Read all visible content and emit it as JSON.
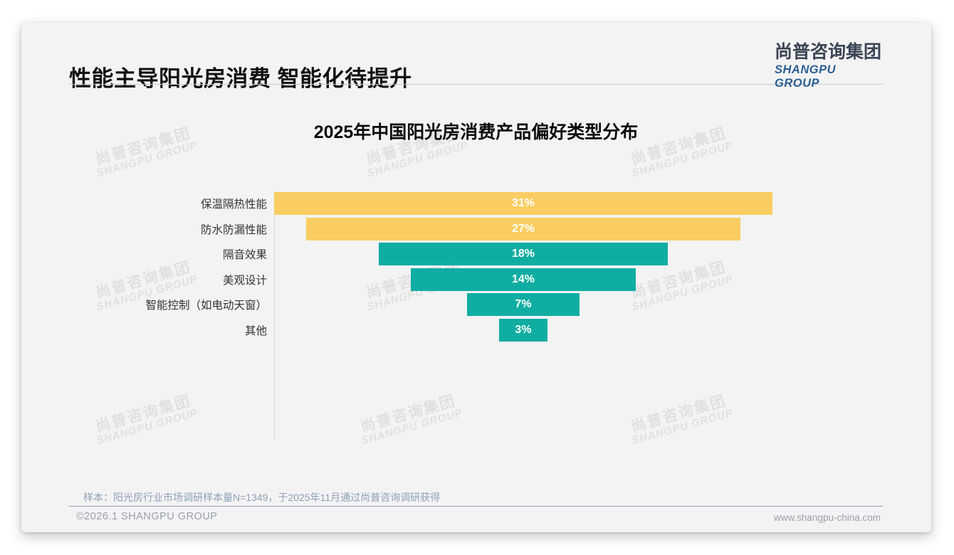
{
  "header": {
    "title": "性能主导阳光房消费 智能化待提升",
    "logo": {
      "cn": "尚普咨询集团",
      "en": "SHANGPU GROUP"
    }
  },
  "chart_data": {
    "type": "bar",
    "title": "2025年中国阳光房消费产品偏好类型分布",
    "orientation": "horizontal-centered-funnel",
    "categories": [
      "保温隔热性能",
      "防水防漏性能",
      "隔音效果",
      "美观设计",
      "智能控制（如电动天窗）",
      "其他"
    ],
    "values": [
      31,
      27,
      18,
      14,
      7,
      3
    ],
    "value_labels": [
      "31%",
      "27%",
      "18%",
      "14%",
      "7%",
      "3%"
    ],
    "bar_colors": [
      "#FACD63",
      "#FACD63",
      "#10ADA2",
      "#10ADA2",
      "#10ADA2",
      "#10ADA2"
    ],
    "xlim": [
      0,
      31
    ],
    "grid": false,
    "legend": null,
    "unit": "%"
  },
  "watermark": {
    "cn": "尚普咨询集团",
    "en": "SHANGPU GROUP"
  },
  "footer": {
    "note": "样本：阳光房行业市场调研样本量N=1349，于2025年11月通过尚普咨询调研获得",
    "copyright": "©2026.1 SHANGPU GROUP",
    "website": "www.shangpu-china.com"
  },
  "colors": {
    "highlight_yellow": "#FACD63",
    "teal": "#10ADA2",
    "logo_cn": "#3B4454",
    "logo_en": "#2D5F94",
    "note_text": "#8FA0B5",
    "card_bg": "#f3f3f4"
  }
}
